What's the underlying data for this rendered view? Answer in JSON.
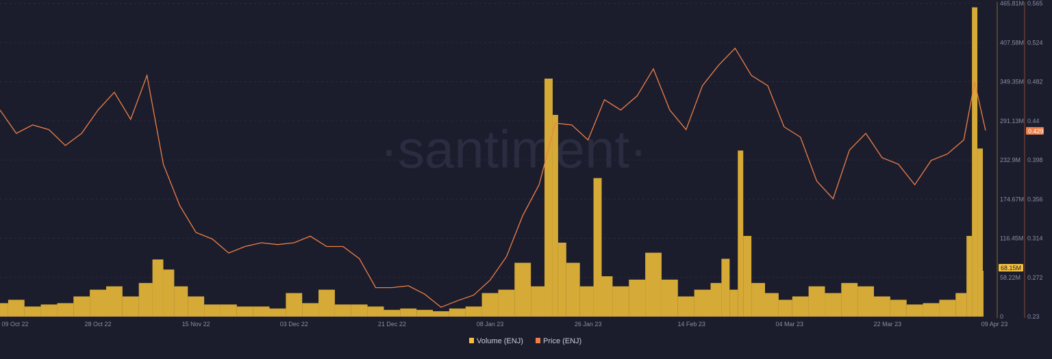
{
  "watermark": "·santiment·",
  "colors": {
    "background": "#1b1d2d",
    "volume": "#d6aa37",
    "price": "#f07f47",
    "volume_axis": "#8a6d2a",
    "price_axis": "#8a4a36",
    "grid": "#2a2d3f"
  },
  "chart_data": {
    "type": "bar+line",
    "title": "",
    "xlabel": "",
    "x_ticks": [
      "09 Oct 22",
      "28 Oct 22",
      "15 Nov 22",
      "03 Dec 22",
      "21 Dec 22",
      "08 Jan 23",
      "26 Jan 23",
      "14 Feb 23",
      "04 Mar 23",
      "22 Mar 23",
      "09 Apr 23"
    ],
    "x_tick_dates": [
      "2022-10-09",
      "2022-10-28",
      "2022-11-15",
      "2022-12-03",
      "2022-12-21",
      "2023-01-08",
      "2023-01-26",
      "2023-02-14",
      "2023-03-04",
      "2023-03-22",
      "2023-04-09"
    ],
    "xlim": [
      "2022-10-09",
      "2023-04-09"
    ],
    "y_volume": {
      "ticks": [
        "0",
        "58.22M",
        "116.45M",
        "174.67M",
        "232.9M",
        "291.13M",
        "349.35M",
        "407.58M",
        "465.81M"
      ],
      "ylim_millions": [
        0,
        465.81
      ],
      "current_label": "68.15M",
      "current_value_millions": 68.15
    },
    "y_price": {
      "ticks": [
        "0.23",
        "0.272",
        "0.314",
        "0.356",
        "0.398",
        "0.44",
        "0.482",
        "0.524",
        "0.565"
      ],
      "ylim": [
        0.23,
        0.565
      ],
      "current_label": "0.429",
      "current_value": 0.429
    },
    "grid": true,
    "legend": {
      "placement": "bottom-center",
      "entries": [
        "Volume (ENJ)",
        "Price (ENJ)"
      ]
    },
    "series": [
      {
        "name": "Volume (ENJ)",
        "type": "bar",
        "unit": "millions",
        "points": [
          [
            "2022-10-10",
            20
          ],
          [
            "2022-10-13",
            25
          ],
          [
            "2022-10-16",
            15
          ],
          [
            "2022-10-19",
            18
          ],
          [
            "2022-10-22",
            20
          ],
          [
            "2022-10-25",
            30
          ],
          [
            "2022-10-28",
            40
          ],
          [
            "2022-10-31",
            45
          ],
          [
            "2022-11-03",
            30
          ],
          [
            "2022-11-06",
            50
          ],
          [
            "2022-11-08",
            85
          ],
          [
            "2022-11-10",
            70
          ],
          [
            "2022-11-12",
            45
          ],
          [
            "2022-11-15",
            30
          ],
          [
            "2022-11-18",
            18
          ],
          [
            "2022-11-21",
            18
          ],
          [
            "2022-11-24",
            15
          ],
          [
            "2022-11-27",
            15
          ],
          [
            "2022-11-30",
            12
          ],
          [
            "2022-12-03",
            35
          ],
          [
            "2022-12-06",
            20
          ],
          [
            "2022-12-09",
            40
          ],
          [
            "2022-12-12",
            18
          ],
          [
            "2022-12-15",
            18
          ],
          [
            "2022-12-18",
            15
          ],
          [
            "2022-12-21",
            10
          ],
          [
            "2022-12-24",
            12
          ],
          [
            "2022-12-27",
            10
          ],
          [
            "2022-12-30",
            8
          ],
          [
            "2023-01-02",
            12
          ],
          [
            "2023-01-05",
            15
          ],
          [
            "2023-01-08",
            35
          ],
          [
            "2023-01-11",
            40
          ],
          [
            "2023-01-14",
            80
          ],
          [
            "2023-01-17",
            45
          ],
          [
            "2023-01-19",
            354
          ],
          [
            "2023-01-20",
            300
          ],
          [
            "2023-01-21",
            110
          ],
          [
            "2023-01-23",
            80
          ],
          [
            "2023-01-26",
            45
          ],
          [
            "2023-01-28",
            206
          ],
          [
            "2023-01-29",
            60
          ],
          [
            "2023-02-01",
            45
          ],
          [
            "2023-02-04",
            55
          ],
          [
            "2023-02-07",
            95
          ],
          [
            "2023-02-10",
            55
          ],
          [
            "2023-02-13",
            30
          ],
          [
            "2023-02-16",
            40
          ],
          [
            "2023-02-19",
            50
          ],
          [
            "2023-02-20",
            86
          ],
          [
            "2023-02-22",
            40
          ],
          [
            "2023-02-23",
            247
          ],
          [
            "2023-02-24",
            120
          ],
          [
            "2023-02-26",
            50
          ],
          [
            "2023-03-01",
            35
          ],
          [
            "2023-03-03",
            25
          ],
          [
            "2023-03-06",
            30
          ],
          [
            "2023-03-09",
            45
          ],
          [
            "2023-03-12",
            35
          ],
          [
            "2023-03-15",
            50
          ],
          [
            "2023-03-18",
            45
          ],
          [
            "2023-03-21",
            30
          ],
          [
            "2023-03-24",
            25
          ],
          [
            "2023-03-27",
            18
          ],
          [
            "2023-03-30",
            20
          ],
          [
            "2023-04-02",
            25
          ],
          [
            "2023-04-05",
            35
          ],
          [
            "2023-04-06",
            120
          ],
          [
            "2023-04-07",
            460
          ],
          [
            "2023-04-08",
            250
          ],
          [
            "2023-04-09",
            68.15
          ]
        ]
      },
      {
        "name": "Price (ENJ)",
        "type": "line",
        "points": [
          [
            "2022-10-10",
            0.451
          ],
          [
            "2022-10-13",
            0.426
          ],
          [
            "2022-10-16",
            0.435
          ],
          [
            "2022-10-19",
            0.43
          ],
          [
            "2022-10-22",
            0.413
          ],
          [
            "2022-10-25",
            0.426
          ],
          [
            "2022-10-28",
            0.451
          ],
          [
            "2022-10-31",
            0.47
          ],
          [
            "2022-11-03",
            0.441
          ],
          [
            "2022-11-06",
            0.488
          ],
          [
            "2022-11-09",
            0.393
          ],
          [
            "2022-11-12",
            0.349
          ],
          [
            "2022-11-15",
            0.32
          ],
          [
            "2022-11-18",
            0.313
          ],
          [
            "2022-11-21",
            0.298
          ],
          [
            "2022-11-24",
            0.305
          ],
          [
            "2022-11-27",
            0.309
          ],
          [
            "2022-11-30",
            0.307
          ],
          [
            "2022-12-03",
            0.309
          ],
          [
            "2022-12-06",
            0.316
          ],
          [
            "2022-12-09",
            0.305
          ],
          [
            "2022-12-12",
            0.305
          ],
          [
            "2022-12-15",
            0.292
          ],
          [
            "2022-12-18",
            0.261
          ],
          [
            "2022-12-21",
            0.261
          ],
          [
            "2022-12-24",
            0.263
          ],
          [
            "2022-12-27",
            0.254
          ],
          [
            "2022-12-30",
            0.24
          ],
          [
            "2023-01-02",
            0.247
          ],
          [
            "2023-01-05",
            0.253
          ],
          [
            "2023-01-08",
            0.269
          ],
          [
            "2023-01-11",
            0.294
          ],
          [
            "2023-01-14",
            0.338
          ],
          [
            "2023-01-17",
            0.371
          ],
          [
            "2023-01-20",
            0.437
          ],
          [
            "2023-01-23",
            0.435
          ],
          [
            "2023-01-26",
            0.419
          ],
          [
            "2023-01-29",
            0.462
          ],
          [
            "2023-02-01",
            0.451
          ],
          [
            "2023-02-04",
            0.466
          ],
          [
            "2023-02-07",
            0.495
          ],
          [
            "2023-02-10",
            0.451
          ],
          [
            "2023-02-13",
            0.43
          ],
          [
            "2023-02-16",
            0.477
          ],
          [
            "2023-02-19",
            0.499
          ],
          [
            "2023-02-22",
            0.517
          ],
          [
            "2023-02-25",
            0.488
          ],
          [
            "2023-02-28",
            0.477
          ],
          [
            "2023-03-03",
            0.433
          ],
          [
            "2023-03-06",
            0.422
          ],
          [
            "2023-03-09",
            0.375
          ],
          [
            "2023-03-12",
            0.356
          ],
          [
            "2023-03-15",
            0.408
          ],
          [
            "2023-03-18",
            0.426
          ],
          [
            "2023-03-21",
            0.4
          ],
          [
            "2023-03-24",
            0.393
          ],
          [
            "2023-03-27",
            0.371
          ],
          [
            "2023-03-30",
            0.397
          ],
          [
            "2023-04-02",
            0.404
          ],
          [
            "2023-04-05",
            0.419
          ],
          [
            "2023-04-07",
            0.481
          ],
          [
            "2023-04-09",
            0.429
          ]
        ]
      }
    ]
  }
}
